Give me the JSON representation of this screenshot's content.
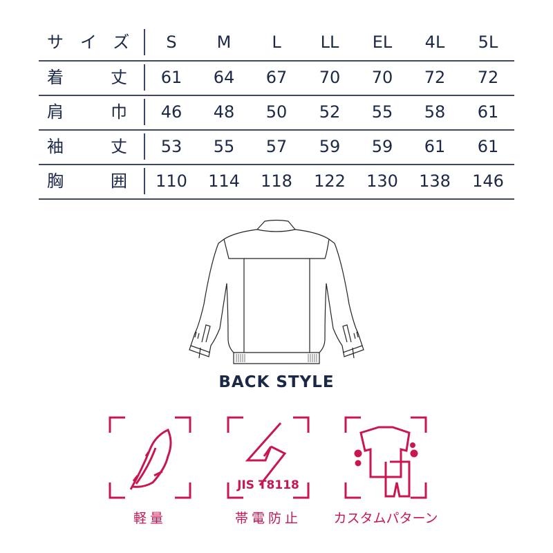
{
  "table": {
    "header_label": "サイズ",
    "sizes": [
      "S",
      "M",
      "L",
      "LL",
      "EL",
      "4L",
      "5L"
    ],
    "rows": [
      {
        "label_a": "着",
        "label_b": "丈",
        "values": [
          "61",
          "64",
          "67",
          "70",
          "70",
          "72",
          "72"
        ]
      },
      {
        "label_a": "肩",
        "label_b": "巾",
        "values": [
          "46",
          "48",
          "50",
          "52",
          "55",
          "58",
          "61"
        ]
      },
      {
        "label_a": "袖",
        "label_b": "丈",
        "values": [
          "53",
          "55",
          "57",
          "59",
          "59",
          "61",
          "61"
        ]
      },
      {
        "label_a": "胸",
        "label_b": "囲",
        "values": [
          "110",
          "114",
          "118",
          "122",
          "130",
          "138",
          "146"
        ]
      }
    ]
  },
  "illustration": {
    "caption": "BACK STYLE"
  },
  "features": [
    {
      "icon": "feather-icon",
      "label": "軽量"
    },
    {
      "icon": "lightning-icon",
      "badge": "JIS T8118",
      "label": "帯電防止"
    },
    {
      "icon": "garment-pattern-icon",
      "label": "カスタムパターン"
    }
  ],
  "colors": {
    "text": "#1b2848",
    "accent": "#c8174f",
    "rule": "#3b4868"
  }
}
